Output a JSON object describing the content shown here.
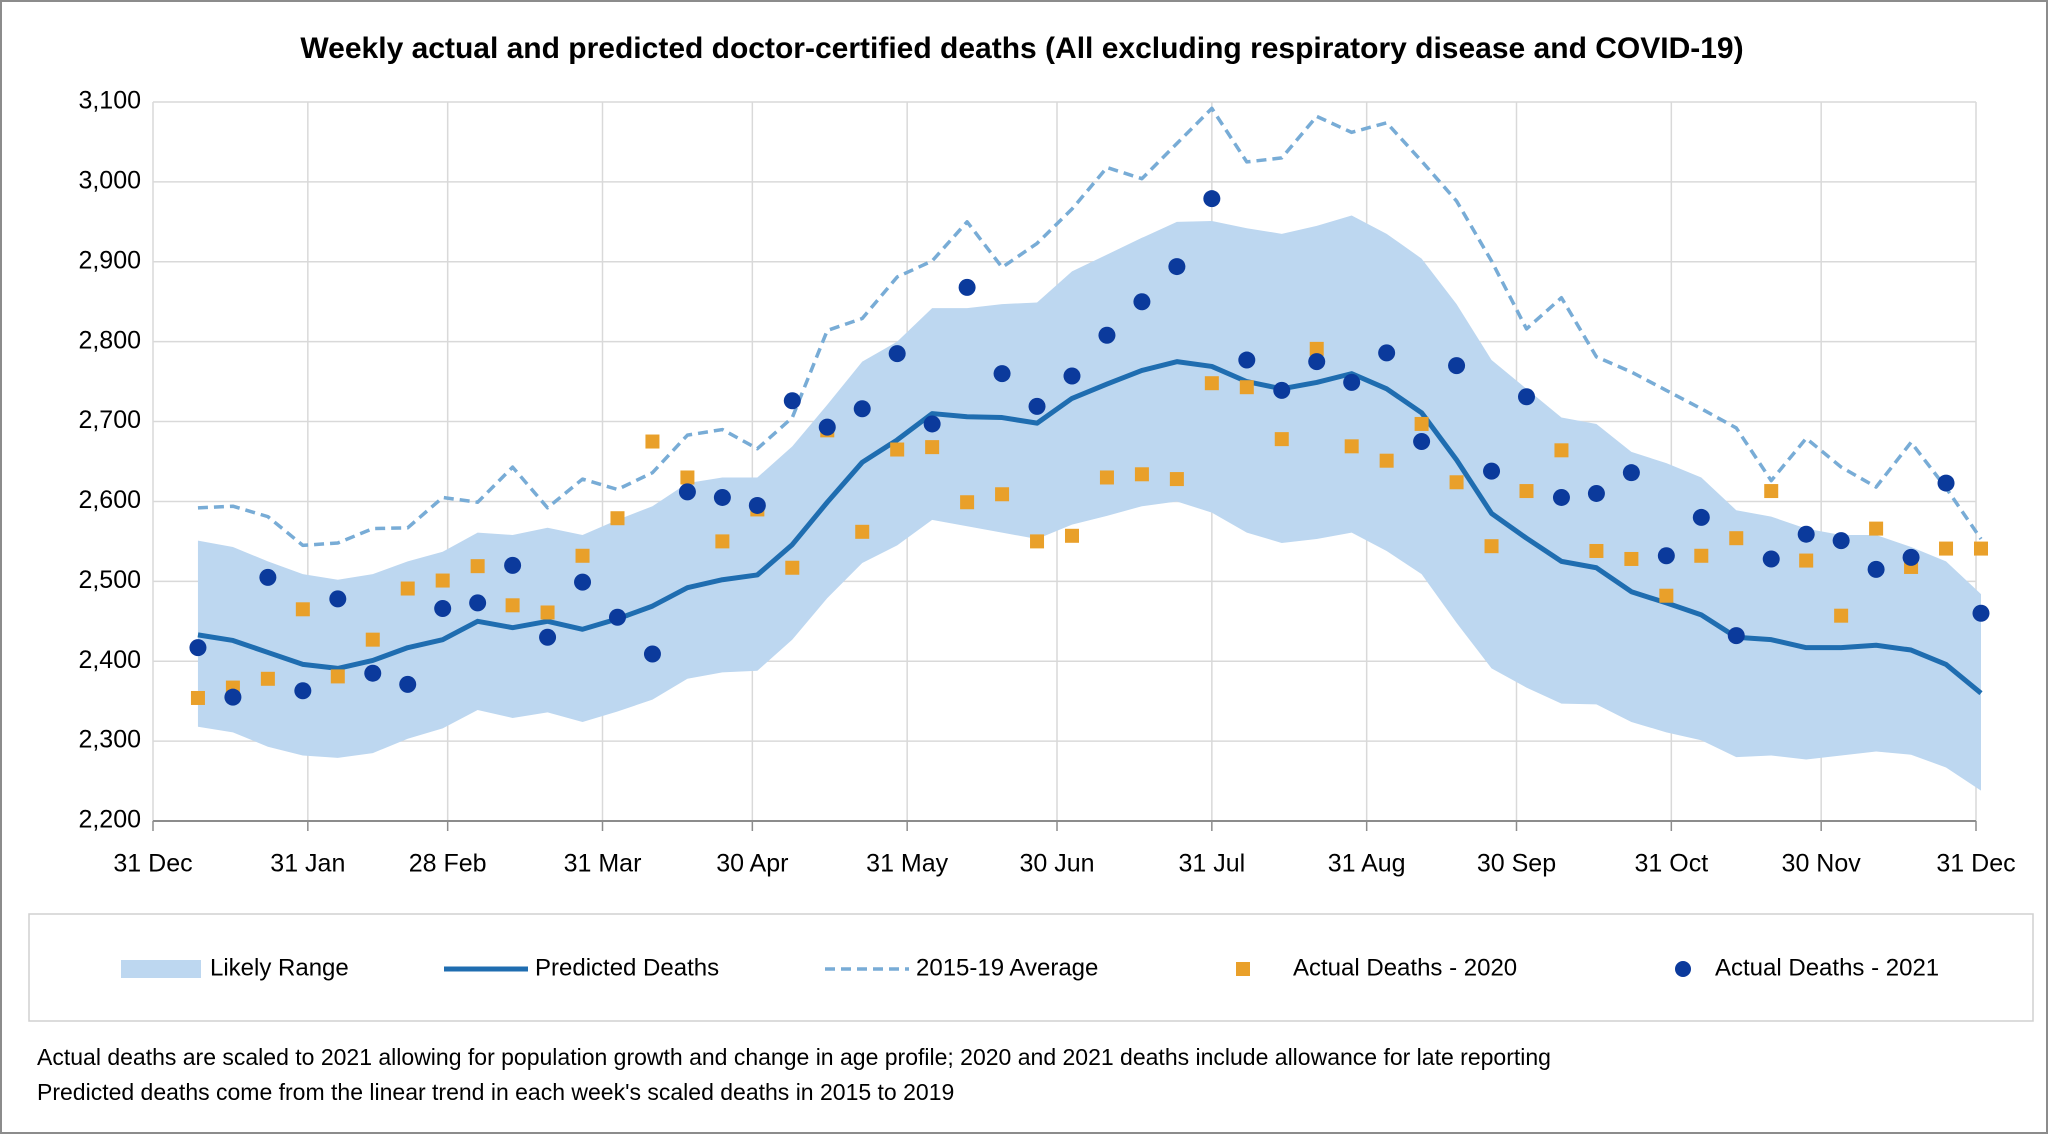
{
  "chart_data": {
    "type": "line",
    "title": "Weekly actual and predicted doctor-certified deaths (All excluding respiratory disease and COVID-19)",
    "x": [
      9,
      16,
      23,
      30,
      37,
      44,
      51,
      58,
      65,
      72,
      79,
      86,
      93,
      100,
      107,
      114,
      121,
      128,
      135,
      142,
      149,
      156,
      163,
      170,
      177,
      184,
      191,
      198,
      205,
      212,
      219,
      226,
      233,
      240,
      247,
      254,
      261,
      268,
      275,
      282,
      289,
      296,
      303,
      310,
      317,
      324,
      331,
      338,
      345,
      352,
      359,
      366
    ],
    "xlim": [
      0,
      365
    ],
    "xticks": [
      {
        "value": 0,
        "label": "31 Dec"
      },
      {
        "value": 31,
        "label": "31 Jan"
      },
      {
        "value": 59,
        "label": "28 Feb"
      },
      {
        "value": 90,
        "label": "31 Mar"
      },
      {
        "value": 120,
        "label": "30 Apr"
      },
      {
        "value": 151,
        "label": "31 May"
      },
      {
        "value": 181,
        "label": "30 Jun"
      },
      {
        "value": 212,
        "label": "31 Jul"
      },
      {
        "value": 243,
        "label": "31 Aug"
      },
      {
        "value": 273,
        "label": "30 Sep"
      },
      {
        "value": 304,
        "label": "31 Oct"
      },
      {
        "value": 334,
        "label": "30 Nov"
      },
      {
        "value": 365,
        "label": "31 Dec"
      }
    ],
    "ylim": [
      2200,
      3100
    ],
    "yticks": [
      {
        "value": 2200,
        "label": "2,200"
      },
      {
        "value": 2300,
        "label": "2,300"
      },
      {
        "value": 2400,
        "label": "2,400"
      },
      {
        "value": 2500,
        "label": "2,500"
      },
      {
        "value": 2600,
        "label": "2,600"
      },
      {
        "value": 2700,
        "label": "2,700"
      },
      {
        "value": 2800,
        "label": "2,800"
      },
      {
        "value": 2900,
        "label": "2,900"
      },
      {
        "value": 3000,
        "label": "3,000"
      },
      {
        "value": 3100,
        "label": "3,100"
      }
    ],
    "grid": true,
    "legend": "bottom",
    "series": [
      {
        "name": "Likely Range",
        "type": "band",
        "color": "#bdd7f0",
        "high": [
          2551,
          2543,
          2525,
          2509,
          2502,
          2509,
          2525,
          2537,
          2561,
          2558,
          2567,
          2558,
          2577,
          2594,
          2623,
          2630,
          2630,
          2669,
          2721,
          2775,
          2800,
          2842,
          2842,
          2847,
          2849,
          2888,
          2909,
          2930,
          2950,
          2951,
          2942,
          2935,
          2945,
          2958,
          2935,
          2904,
          2847,
          2777,
          2741,
          2705,
          2697,
          2662,
          2648,
          2630,
          2589,
          2581,
          2566,
          2558,
          2558,
          2543,
          2525,
          2484
        ],
        "low": [
          2318,
          2311,
          2293,
          2282,
          2279,
          2285,
          2303,
          2316,
          2339,
          2329,
          2336,
          2324,
          2337,
          2352,
          2378,
          2386,
          2388,
          2427,
          2479,
          2523,
          2545,
          2577,
          2569,
          2561,
          2553,
          2571,
          2582,
          2594,
          2600,
          2586,
          2561,
          2548,
          2553,
          2561,
          2538,
          2509,
          2448,
          2391,
          2367,
          2347,
          2346,
          2324,
          2311,
          2301,
          2280,
          2282,
          2277,
          2282,
          2287,
          2283,
          2267,
          2238
        ]
      },
      {
        "name": "Predicted Deaths",
        "type": "line",
        "dashed": false,
        "color": "#1f6db0",
        "values": [
          2433,
          2426,
          2411,
          2396,
          2391,
          2401,
          2417,
          2427,
          2450,
          2442,
          2450,
          2440,
          2453,
          2469,
          2492,
          2502,
          2508,
          2546,
          2599,
          2649,
          2677,
          2710,
          2706,
          2705,
          2698,
          2729,
          2747,
          2764,
          2775,
          2769,
          2750,
          2741,
          2749,
          2760,
          2741,
          2711,
          2652,
          2585,
          2554,
          2525,
          2517,
          2487,
          2473,
          2458,
          2430,
          2427,
          2417,
          2417,
          2420,
          2414,
          2396,
          2360
        ]
      },
      {
        "name": "2015-19 Average",
        "type": "line",
        "dashed": true,
        "color": "#78acd6",
        "values": [
          2592,
          2594,
          2581,
          2545,
          2548,
          2566,
          2567,
          2605,
          2599,
          2643,
          2592,
          2628,
          2615,
          2636,
          2683,
          2690,
          2666,
          2705,
          2814,
          2829,
          2881,
          2901,
          2950,
          2893,
          2923,
          2966,
          3018,
          3004,
          3048,
          3092,
          3025,
          3030,
          3082,
          3062,
          3074,
          3026,
          2976,
          2901,
          2816,
          2855,
          2781,
          2762,
          2739,
          2716,
          2692,
          2626,
          2679,
          2643,
          2618,
          2674,
          2617,
          2553
        ]
      },
      {
        "name": "Actual Deaths - 2020",
        "type": "scatter",
        "marker": "square",
        "color": "#e9a02a",
        "values": [
          2354,
          2367,
          2378,
          2465,
          2381,
          2427,
          2491,
          2501,
          2519,
          2470,
          2461,
          2532,
          2579,
          2675,
          2630,
          2550,
          2590,
          2517,
          2689,
          2562,
          2665,
          2668,
          2599,
          2609,
          2550,
          2557,
          2630,
          2634,
          2628,
          2748,
          2743,
          2678,
          2791,
          2669,
          2651,
          2697,
          2624,
          2544,
          2613,
          2664,
          2538,
          2528,
          2482,
          2532,
          2554,
          2613,
          2526,
          2457,
          2566,
          2518,
          2541,
          2541
        ]
      },
      {
        "name": "Actual Deaths - 2021",
        "type": "scatter",
        "marker": "circle",
        "color": "#0b3a9c",
        "values": [
          2417,
          2355,
          2505,
          2363,
          2478,
          2385,
          2371,
          2466,
          2473,
          2520,
          2430,
          2499,
          2455,
          2409,
          2612,
          2605,
          2595,
          2726,
          2693,
          2716,
          2785,
          2697,
          2868,
          2760,
          2719,
          2757,
          2808,
          2850,
          2894,
          2979,
          2777,
          2739,
          2775,
          2749,
          2786,
          2675,
          2770,
          2638,
          2731,
          2605,
          2610,
          2636,
          2532,
          2580,
          2432,
          2528,
          2559,
          2551,
          2515,
          2530,
          2623,
          2460
        ]
      }
    ],
    "notes": [
      "Actual deaths are scaled to 2021 allowing for population growth and change in age profile; 2020 and 2021 deaths include allowance for late reporting",
      "Predicted deaths come from the linear trend in each week's scaled deaths in 2015 to 2019"
    ]
  }
}
